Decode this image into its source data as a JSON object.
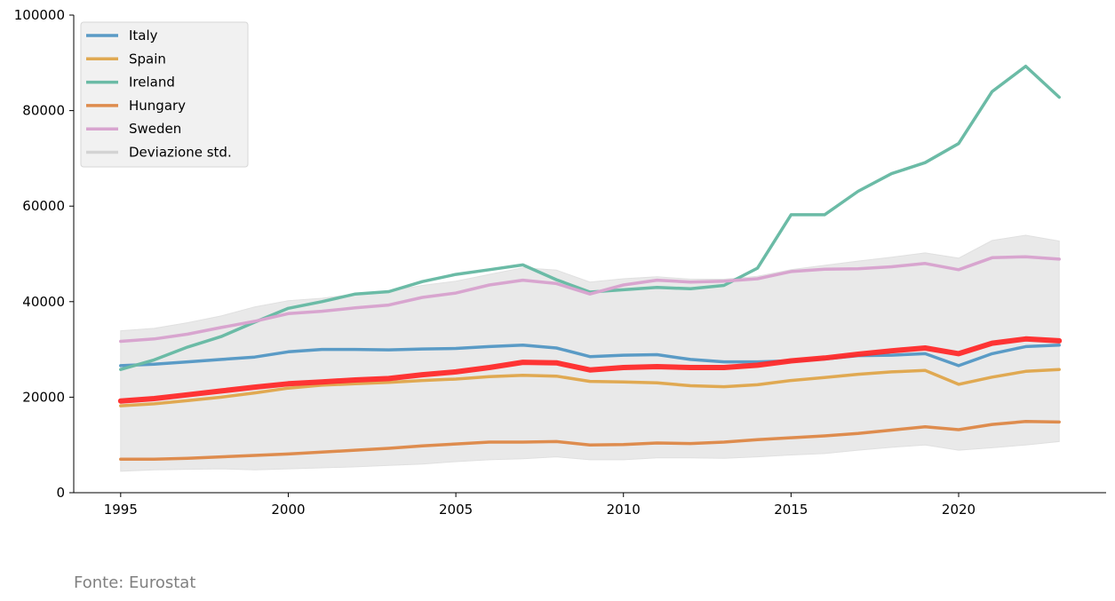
{
  "source_note": "Fonte: Eurostat",
  "chart_data": {
    "type": "line",
    "x": [
      1995,
      1996,
      1997,
      1998,
      1999,
      2000,
      2001,
      2002,
      2003,
      2004,
      2005,
      2006,
      2007,
      2008,
      2009,
      2010,
      2011,
      2012,
      2013,
      2014,
      2015,
      2016,
      2017,
      2018,
      2019,
      2020,
      2021,
      2022,
      2023
    ],
    "xlim": [
      1993.6,
      2024.4
    ],
    "ylim": [
      0,
      100000
    ],
    "x_ticks": [
      1995,
      2000,
      2005,
      2010,
      2015,
      2020
    ],
    "y_ticks": [
      0,
      20000,
      40000,
      60000,
      80000,
      100000
    ],
    "grid": false,
    "legend_position": "top-left",
    "series": [
      {
        "name": "Italy",
        "color": "#5a9bc6",
        "values": [
          26600,
          26900,
          27400,
          27900,
          28400,
          29500,
          30000,
          30000,
          29900,
          30100,
          30200,
          30600,
          30900,
          30300,
          28500,
          28800,
          28900,
          27900,
          27400,
          27400,
          27600,
          28000,
          28700,
          28800,
          29100,
          26600,
          29100,
          30600,
          30900
        ]
      },
      {
        "name": "Spain",
        "color": "#e0a952",
        "values": [
          18200,
          18600,
          19300,
          20000,
          20900,
          21900,
          22500,
          22800,
          23100,
          23500,
          23800,
          24300,
          24600,
          24400,
          23300,
          23200,
          23000,
          22400,
          22200,
          22600,
          23500,
          24100,
          24800,
          25300,
          25600,
          22700,
          24200,
          25400,
          25800
        ]
      },
      {
        "name": "Ireland",
        "color": "#6bbba6",
        "values": [
          25800,
          27800,
          30500,
          32700,
          35700,
          38600,
          40000,
          41600,
          42100,
          44200,
          45700,
          46700,
          47700,
          44600,
          42000,
          42500,
          43000,
          42700,
          43400,
          47000,
          58200,
          58200,
          63100,
          66800,
          69100,
          73100,
          84000,
          89300,
          82800
        ]
      },
      {
        "name": "Hungary",
        "color": "#de8c4e",
        "values": [
          7000,
          7000,
          7200,
          7500,
          7800,
          8100,
          8500,
          8900,
          9300,
          9800,
          10200,
          10600,
          10600,
          10700,
          10000,
          10100,
          10400,
          10300,
          10600,
          11100,
          11500,
          11900,
          12400,
          13100,
          13800,
          13200,
          14300,
          14900,
          14800
        ]
      },
      {
        "name": "Sweden",
        "color": "#d8a5cf",
        "values": [
          31700,
          32200,
          33200,
          34600,
          35900,
          37500,
          38000,
          38700,
          39300,
          40900,
          41800,
          43500,
          44500,
          43800,
          41600,
          43500,
          44500,
          44100,
          44300,
          44800,
          46300,
          46800,
          46900,
          47300,
          48000,
          46700,
          49200,
          49400,
          48900
        ]
      },
      {
        "name": "",
        "color": "#ff2a2a",
        "values": [
          19200,
          19700,
          20500,
          21300,
          22100,
          22800,
          23200,
          23600,
          23900,
          24700,
          25300,
          26200,
          27300,
          27200,
          25700,
          26200,
          26400,
          26200,
          26200,
          26700,
          27600,
          28200,
          29000,
          29700,
          30300,
          29100,
          31300,
          32200,
          31800
        ]
      }
    ],
    "band": {
      "name": "Deviazione std.",
      "color": "#e0e0e0",
      "upper": [
        33900,
        34400,
        35600,
        37000,
        38900,
        40200,
        40700,
        41600,
        42200,
        43400,
        44300,
        45700,
        47100,
        46600,
        44100,
        44800,
        45200,
        44700,
        44700,
        45300,
        46700,
        47600,
        48500,
        49300,
        50200,
        49100,
        52800,
        53900,
        52700
      ],
      "lower": [
        4500,
        4800,
        4900,
        5000,
        4800,
        5000,
        5200,
        5400,
        5700,
        6000,
        6500,
        6900,
        7100,
        7500,
        6900,
        6900,
        7300,
        7300,
        7200,
        7500,
        7900,
        8200,
        8900,
        9500,
        10000,
        8900,
        9400,
        10000,
        10700
      ]
    }
  }
}
